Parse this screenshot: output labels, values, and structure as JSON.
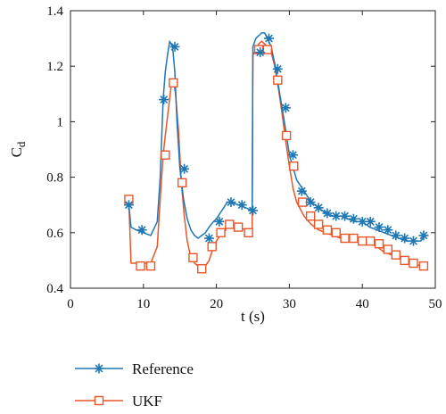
{
  "chart_data": {
    "type": "line",
    "title": "",
    "xlabel": "t (s)",
    "ylabel": "C",
    "ylabel_subscript": "d",
    "xlim": [
      0,
      50
    ],
    "ylim": [
      0.4,
      1.4
    ],
    "xticks": [
      0,
      10,
      20,
      30,
      40,
      50
    ],
    "yticks": [
      0.4,
      0.6,
      0.8,
      1,
      1.2,
      1.4
    ],
    "grid": false,
    "legend_position": "bottom-left-outside",
    "series": [
      {
        "name": "Reference",
        "color": "#1f77b4",
        "marker": "asterisk",
        "x": [
          8.0,
          8.3,
          9.0,
          10.0,
          11.0,
          11.9,
          12.3,
          12.7,
          13.0,
          13.3,
          13.6,
          14.0,
          14.3,
          14.6,
          15.0,
          15.5,
          16.0,
          16.5,
          17.0,
          17.5,
          18.0,
          18.5,
          19.0,
          19.6,
          20.0,
          20.5,
          21.0,
          21.5,
          22.0,
          23.0,
          24.0,
          24.9,
          25.0,
          25.4,
          25.8,
          26.2,
          26.6,
          27.0,
          27.5,
          28.0,
          28.5,
          29.0,
          29.5,
          30.0,
          31.0,
          32.0,
          33.0,
          34.0,
          35.0,
          36.0,
          37.0,
          38.0,
          39.0,
          40.0,
          41.0,
          42.0,
          43.0,
          44.0,
          45.0,
          46.0,
          47.0,
          48.0,
          48.6
        ],
        "values": [
          0.7,
          0.62,
          0.61,
          0.6,
          0.59,
          0.64,
          0.8,
          1.08,
          1.18,
          1.24,
          1.29,
          1.27,
          1.18,
          1.0,
          0.83,
          0.72,
          0.65,
          0.61,
          0.59,
          0.58,
          0.59,
          0.6,
          0.62,
          0.64,
          0.65,
          0.67,
          0.69,
          0.71,
          0.71,
          0.7,
          0.69,
          0.68,
          1.27,
          1.3,
          1.31,
          1.32,
          1.32,
          1.3,
          1.27,
          1.21,
          1.13,
          1.05,
          0.97,
          0.88,
          0.79,
          0.75,
          0.71,
          0.69,
          0.67,
          0.66,
          0.66,
          0.65,
          0.64,
          0.64,
          0.62,
          0.61,
          0.6,
          0.59,
          0.58,
          0.57,
          0.57,
          0.57,
          0.59
        ],
        "marker_x": [
          8.0,
          9.8,
          12.8,
          14.3,
          15.6,
          19.0,
          20.4,
          22.0,
          23.5,
          25.0,
          26.0,
          27.2,
          28.4,
          29.5,
          30.5,
          31.7,
          32.9,
          34.0,
          35.2,
          36.4,
          37.6,
          38.8,
          40.0,
          41.1,
          42.3,
          43.5,
          44.6,
          45.8,
          47.0,
          48.4
        ],
        "marker_y": [
          0.7,
          0.61,
          1.08,
          1.27,
          0.83,
          0.58,
          0.64,
          0.71,
          0.7,
          0.68,
          1.25,
          1.3,
          1.19,
          1.05,
          0.88,
          0.75,
          0.71,
          0.69,
          0.67,
          0.66,
          0.66,
          0.65,
          0.64,
          0.64,
          0.62,
          0.61,
          0.59,
          0.58,
          0.57,
          0.59
        ]
      },
      {
        "name": "UKF",
        "color": "#e8562a",
        "marker": "square",
        "x": [
          8.0,
          8.3,
          9.0,
          10.0,
          11.0,
          11.9,
          12.3,
          12.7,
          13.0,
          13.4,
          13.8,
          14.1,
          14.4,
          14.8,
          15.2,
          15.6,
          16.0,
          16.5,
          17.0,
          17.5,
          18.0,
          18.5,
          19.0,
          19.5,
          20.0,
          20.5,
          21.0,
          21.5,
          22.0,
          23.0,
          24.0,
          24.9,
          25.0,
          25.4,
          25.8,
          26.2,
          26.6,
          27.0,
          27.5,
          28.0,
          28.5,
          29.0,
          29.5,
          30.0,
          30.5,
          31.0,
          32.0,
          33.0,
          34.0,
          35.0,
          36.0,
          37.0,
          38.0,
          39.0,
          40.0,
          41.0,
          42.0,
          43.0,
          44.0,
          45.0,
          46.0,
          47.0,
          48.0,
          48.6
        ],
        "values": [
          0.72,
          0.49,
          0.49,
          0.49,
          0.49,
          0.55,
          0.72,
          0.88,
          0.95,
          1.04,
          1.13,
          1.15,
          1.1,
          0.97,
          0.78,
          0.66,
          0.57,
          0.51,
          0.49,
          0.48,
          0.47,
          0.48,
          0.5,
          0.54,
          0.57,
          0.59,
          0.6,
          0.62,
          0.63,
          0.62,
          0.61,
          0.6,
          1.24,
          1.26,
          1.28,
          1.29,
          1.28,
          1.27,
          1.25,
          1.2,
          1.12,
          1.03,
          0.93,
          0.84,
          0.76,
          0.71,
          0.66,
          0.63,
          0.61,
          0.6,
          0.59,
          0.58,
          0.58,
          0.57,
          0.57,
          0.56,
          0.55,
          0.53,
          0.52,
          0.51,
          0.5,
          0.49,
          0.48,
          0.48
        ],
        "marker_x": [
          8.0,
          9.6,
          11.0,
          13.0,
          14.1,
          15.3,
          16.8,
          18.0,
          19.4,
          20.6,
          21.8,
          23.0,
          24.4,
          25.8,
          27.0,
          28.4,
          29.6,
          30.6,
          31.8,
          32.9,
          34.0,
          35.2,
          36.4,
          37.6,
          38.8,
          40.0,
          41.1,
          42.3,
          43.5,
          44.6,
          45.8,
          47.0,
          48.4
        ],
        "marker_y": [
          0.72,
          0.48,
          0.48,
          0.88,
          1.14,
          0.78,
          0.51,
          0.47,
          0.55,
          0.6,
          0.63,
          0.62,
          0.6,
          1.26,
          1.26,
          1.15,
          0.95,
          0.84,
          0.71,
          0.66,
          0.63,
          0.61,
          0.6,
          0.58,
          0.58,
          0.57,
          0.57,
          0.56,
          0.54,
          0.52,
          0.5,
          0.49,
          0.48
        ]
      }
    ]
  }
}
